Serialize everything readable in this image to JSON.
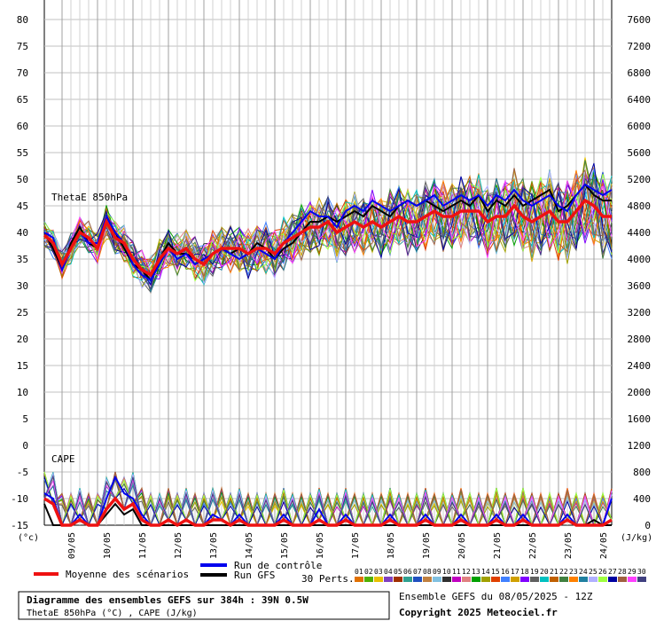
{
  "chart_data": {
    "type": "line",
    "panels": [
      {
        "label": "ThetaE 850hPa",
        "unit": "°C"
      },
      {
        "label": "CAPE",
        "unit": "J/kg"
      }
    ],
    "left_axis": {
      "unit": "(°c)",
      "min": -15,
      "max": 80,
      "ticks": [
        "80",
        "75",
        "70",
        "65",
        "60",
        "55",
        "50",
        "45",
        "40",
        "35",
        "30",
        "25",
        "20",
        "15",
        "10",
        "5",
        "0",
        "-5",
        "-10",
        "-15"
      ]
    },
    "right_axis": {
      "unit": "(J/kg)",
      "min": 0,
      "max": 7600,
      "ticks": [
        "7600",
        "7200",
        "6800",
        "6400",
        "6000",
        "5600",
        "5200",
        "4800",
        "4400",
        "4000",
        "3600",
        "3200",
        "2800",
        "2400",
        "2000",
        "1600",
        "1200",
        "800",
        "400",
        "0"
      ]
    },
    "x_labels": [
      "09/05",
      "10/05",
      "11/05",
      "12/05",
      "13/05",
      "14/05",
      "15/05",
      "16/05",
      "17/05",
      "18/05",
      "19/05",
      "20/05",
      "21/05",
      "22/05",
      "23/05",
      "24/05"
    ],
    "grid": true,
    "series": [
      {
        "name": "Moyenne des scénarios",
        "color": "#ee1111",
        "thetae": [
          39.5,
          38,
          34,
          37,
          40,
          39,
          37,
          42,
          39,
          38,
          35,
          33,
          32,
          35,
          37,
          36,
          37,
          35,
          34,
          36,
          37,
          37,
          37,
          36,
          37,
          37,
          36,
          38,
          39,
          40,
          41,
          41,
          42,
          40,
          41,
          42,
          41,
          42,
          41,
          42,
          43,
          42,
          42,
          43,
          44,
          43,
          43,
          44,
          44,
          44,
          42,
          43,
          43,
          45,
          43,
          42,
          43,
          44,
          42,
          42,
          44,
          46,
          45,
          43,
          43
        ],
        "cape": [
          -10,
          -11,
          -15,
          -15,
          -14,
          -15,
          -15,
          -12,
          -10,
          -12,
          -11,
          -14,
          -15,
          -15,
          -14,
          -15,
          -14,
          -15,
          -15,
          -14,
          -14,
          -15,
          -14,
          -15,
          -15,
          -15,
          -15,
          -14,
          -15,
          -15,
          -15,
          -14,
          -15,
          -15,
          -14,
          -15,
          -15,
          -15,
          -15,
          -14,
          -15,
          -15,
          -15,
          -14,
          -15,
          -15,
          -15,
          -14,
          -15,
          -15,
          -15,
          -14,
          -15,
          -15,
          -14,
          -15,
          -15,
          -15,
          -15,
          -14,
          -15,
          -15,
          -15,
          -15,
          -14
        ]
      },
      {
        "name": "Run de contrôle",
        "color": "#0000ee",
        "thetae": [
          40,
          39,
          33,
          37,
          40,
          38,
          38,
          43,
          40,
          38,
          34,
          32,
          31,
          34,
          37,
          35,
          36,
          34,
          35,
          36,
          37,
          36,
          35,
          36,
          37,
          36,
          35,
          38,
          40,
          42,
          44,
          43,
          43,
          41,
          44,
          45,
          44,
          46,
          45,
          44,
          45,
          46,
          45,
          46,
          47,
          45,
          46,
          47,
          46,
          47,
          45,
          47,
          46,
          48,
          46,
          45,
          46,
          47,
          45,
          44,
          47,
          49,
          48,
          47,
          48
        ],
        "cape": [
          -9,
          -10,
          -15,
          -15,
          -13,
          -15,
          -15,
          -10,
          -6,
          -9,
          -10,
          -13,
          -15,
          -15,
          -14,
          -15,
          -14,
          -15,
          -15,
          -13,
          -14,
          -15,
          -13,
          -15,
          -15,
          -15,
          -15,
          -13,
          -15,
          -15,
          -15,
          -12,
          -15,
          -15,
          -13,
          -15,
          -15,
          -15,
          -15,
          -13,
          -15,
          -15,
          -15,
          -13,
          -15,
          -15,
          -15,
          -13,
          -15,
          -15,
          -15,
          -13,
          -15,
          -15,
          -13,
          -15,
          -15,
          -15,
          -15,
          -13,
          -15,
          -15,
          -15,
          -15,
          -10
        ]
      },
      {
        "name": "Run GFS",
        "color": "#000000",
        "thetae": [
          40,
          37,
          33,
          38,
          41,
          38,
          37,
          43,
          40,
          37,
          34,
          33,
          31,
          35,
          38,
          36,
          36,
          35,
          34,
          36,
          37,
          36,
          37,
          36,
          38,
          37,
          35,
          37,
          38,
          40,
          42,
          42,
          43,
          42,
          43,
          44,
          43,
          45,
          44,
          43,
          45,
          46,
          45,
          46,
          45,
          44,
          45,
          46,
          45,
          47,
          44,
          46,
          45,
          47,
          45,
          46,
          47,
          48,
          44,
          45,
          47,
          49,
          47,
          46,
          46
        ],
        "cape": [
          -11,
          -15,
          -15,
          -15,
          -14,
          -15,
          -15,
          -13,
          -11,
          -13,
          -12,
          -15,
          -15,
          -15,
          -15,
          -15,
          -15,
          -15,
          -15,
          -15,
          -15,
          -15,
          -15,
          -15,
          -15,
          -15,
          -15,
          -15,
          -15,
          -15,
          -15,
          -15,
          -15,
          -15,
          -15,
          -15,
          -15,
          -15,
          -15,
          -15,
          -15,
          -15,
          -15,
          -15,
          -15,
          -15,
          -15,
          -15,
          -15,
          -15,
          -15,
          -15,
          -15,
          -15,
          -15,
          -15,
          -15,
          -15,
          -15,
          -14,
          -15,
          -15,
          -14,
          -15,
          -15
        ]
      }
    ],
    "perturbations": {
      "count_label": "30 Perts.",
      "labels": [
        "01",
        "02",
        "03",
        "04",
        "05",
        "06",
        "07",
        "08",
        "09",
        "10",
        "11",
        "12",
        "13",
        "14",
        "15",
        "16",
        "17",
        "18",
        "19",
        "20",
        "21",
        "22",
        "23",
        "24",
        "25",
        "26",
        "27",
        "28",
        "29",
        "30"
      ],
      "colors": [
        "#e07000",
        "#50b000",
        "#e8c000",
        "#8040c0",
        "#a03000",
        "#30a090",
        "#2050c0",
        "#c08040",
        "#80c0e0",
        "#303030",
        "#c000c0",
        "#e08080",
        "#00a000",
        "#a0a000",
        "#e04000",
        "#4080ff",
        "#d0a000",
        "#8000ff",
        "#606060",
        "#00c0c0",
        "#c06000",
        "#408040",
        "#ff8000",
        "#2080a0",
        "#b0b0ff",
        "#a0ff40",
        "#0000a0",
        "#a06040",
        "#ff40ff",
        "#404080"
      ]
    }
  },
  "footer": {
    "title": "Diagramme des ensembles GEFS sur 384h : 39N 0.5W",
    "subtitle": "ThetaE 850hPa (°C) , CAPE (J/kg)",
    "run_info": "Ensemble GEFS du 08/05/2025 - 12Z",
    "copyright": "Copyright 2025 Meteociel.fr"
  }
}
